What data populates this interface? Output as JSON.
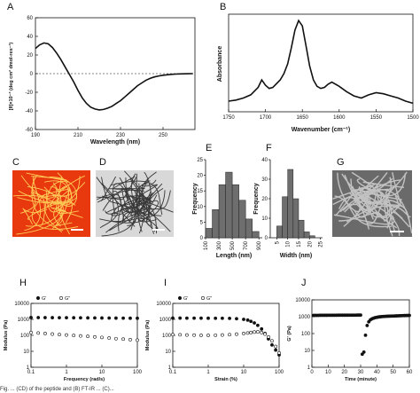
{
  "colors": {
    "curve": "#111111",
    "bar": "#6e6e6e",
    "micro_c_bg": "#e8380e",
    "micro_c_fiber": "#ffd35a"
  },
  "panels": {
    "A": {
      "letter": "A"
    },
    "B": {
      "letter": "B"
    },
    "C": {
      "letter": "C"
    },
    "D": {
      "letter": "D"
    },
    "E": {
      "letter": "E"
    },
    "F": {
      "letter": "F"
    },
    "G": {
      "letter": "G"
    },
    "H": {
      "letter": "H"
    },
    "I": {
      "letter": "I"
    },
    "J": {
      "letter": "J"
    }
  },
  "chart_data": [
    {
      "id": "A",
      "type": "line",
      "xlabel": "Wavelength (nm)",
      "ylabel": "[θ]×10⁻³ (deg cm² dmol-res⁻¹)",
      "xlim": [
        190,
        265
      ],
      "ylim": [
        -60,
        60
      ],
      "xticks": [
        190,
        210,
        230,
        250
      ],
      "yticks": [
        60,
        40,
        20,
        0,
        -20,
        -40,
        -60
      ],
      "zero_line": "dashed",
      "series": [
        {
          "x": [
            190,
            192,
            194,
            196,
            198,
            200,
            202,
            204,
            206,
            208,
            210,
            212,
            214,
            216,
            218,
            220,
            222,
            224,
            226,
            228,
            230,
            232,
            234,
            236,
            238,
            240,
            242,
            244,
            246,
            248,
            250,
            252,
            254,
            256,
            258,
            260,
            262,
            264
          ],
          "y": [
            27,
            31,
            33,
            32,
            28,
            22,
            15,
            7,
            -1,
            -9,
            -18,
            -26,
            -32,
            -36,
            -38,
            -39,
            -38.5,
            -37,
            -35,
            -32,
            -29,
            -25,
            -21,
            -17,
            -13,
            -10,
            -7,
            -5,
            -3.5,
            -2.5,
            -1.7,
            -1.2,
            -0.8,
            -0.5,
            -0.3,
            -0.2,
            -0.1,
            0
          ]
        }
      ]
    },
    {
      "id": "B",
      "type": "line",
      "xlabel": "Wavenumber (cm⁻¹)",
      "ylabel": "Absorbance",
      "xlim": [
        1750,
        1500
      ],
      "xticks": [
        1750,
        1700,
        1650,
        1600,
        1550,
        1500
      ],
      "series": [
        {
          "x": [
            1750,
            1740,
            1730,
            1720,
            1710,
            1705,
            1700,
            1695,
            1690,
            1680,
            1675,
            1670,
            1665,
            1660,
            1655,
            1650,
            1645,
            1640,
            1635,
            1630,
            1625,
            1620,
            1615,
            1610,
            1600,
            1590,
            1580,
            1570,
            1560,
            1550,
            1540,
            1530,
            1520,
            1510,
            1500
          ],
          "y": [
            0.3,
            0.31,
            0.33,
            0.36,
            0.43,
            0.5,
            0.45,
            0.42,
            0.43,
            0.5,
            0.56,
            0.65,
            0.8,
            0.97,
            1.06,
            1.01,
            0.82,
            0.63,
            0.5,
            0.44,
            0.42,
            0.43,
            0.46,
            0.48,
            0.44,
            0.39,
            0.35,
            0.33,
            0.36,
            0.38,
            0.37,
            0.35,
            0.33,
            0.3,
            0.28
          ]
        }
      ]
    },
    {
      "id": "E",
      "type": "bar",
      "xlabel": "Length (nm)",
      "ylabel": "Frequency",
      "xticks": [
        100,
        300,
        500,
        700,
        900
      ],
      "yticks": [
        0,
        5,
        10,
        15,
        20,
        25
      ],
      "ylim": [
        0,
        25
      ],
      "bin_width": 100,
      "bin_centers": [
        150,
        250,
        350,
        450,
        550,
        650,
        750,
        850
      ],
      "values": [
        3,
        9,
        17,
        21,
        17,
        12,
        6,
        2
      ]
    },
    {
      "id": "F",
      "type": "bar",
      "xlabel": "Width (nm)",
      "ylabel": "Frequency",
      "xticks": [
        5,
        10,
        15,
        20,
        25
      ],
      "yticks": [
        0,
        10,
        20,
        30,
        40
      ],
      "ylim": [
        0,
        40
      ],
      "bin_width": 2.5,
      "bin_centers": [
        6.25,
        8.75,
        11.25,
        13.75,
        16.25,
        18.75,
        21.25
      ],
      "values": [
        6,
        21,
        35,
        20,
        9,
        3,
        1
      ]
    },
    {
      "id": "H",
      "type": "scatter",
      "xlabel": "Frequency (rad/s)",
      "ylabel": "Modulus (Pa)",
      "yscale": "log",
      "xscale": "log",
      "xlim": [
        0.1,
        100
      ],
      "ylim": [
        1,
        10000
      ],
      "xticks": [
        "0.1",
        "1",
        "10",
        "100"
      ],
      "yticks": [
        "10000",
        "1000",
        "100",
        "10",
        "1"
      ],
      "legend": [
        "G'",
        "G\""
      ],
      "series": [
        {
          "name": "G'",
          "marker": "filled",
          "x": [
            0.1,
            0.16,
            0.25,
            0.4,
            0.63,
            1,
            1.6,
            2.5,
            4,
            6.3,
            10,
            16,
            25,
            40,
            63,
            100
          ],
          "y": [
            1300,
            1290,
            1285,
            1280,
            1270,
            1265,
            1260,
            1250,
            1240,
            1230,
            1220,
            1210,
            1200,
            1190,
            1180,
            1170
          ]
        },
        {
          "name": "G\"",
          "marker": "open",
          "x": [
            0.1,
            0.16,
            0.25,
            0.4,
            0.63,
            1,
            1.6,
            2.5,
            4,
            6.3,
            10,
            16,
            25,
            40,
            63,
            100
          ],
          "y": [
            150,
            140,
            130,
            120,
            112,
            105,
            98,
            92,
            86,
            80,
            74,
            68,
            62,
            58,
            54,
            50
          ]
        }
      ]
    },
    {
      "id": "I",
      "type": "scatter",
      "xlabel": "Strain (%)",
      "ylabel": "Modulus (Pa)",
      "yscale": "log",
      "xscale": "log",
      "xlim": [
        0.1,
        100
      ],
      "ylim": [
        1,
        10000
      ],
      "xticks": [
        "0.1",
        "1",
        "10",
        "100"
      ],
      "yticks": [
        "10000",
        "1000",
        "100",
        "10",
        "1"
      ],
      "legend": [
        "G'",
        "G\""
      ],
      "series": [
        {
          "name": "G'",
          "marker": "filled",
          "x": [
            0.1,
            0.16,
            0.25,
            0.4,
            0.63,
            1,
            1.6,
            2.5,
            4,
            6.3,
            10,
            13,
            16,
            20,
            25,
            32,
            40,
            50,
            63,
            80,
            100
          ],
          "y": [
            1200,
            1200,
            1195,
            1190,
            1185,
            1180,
            1175,
            1170,
            1150,
            1100,
            1000,
            900,
            750,
            600,
            420,
            250,
            130,
            60,
            25,
            12,
            6
          ]
        },
        {
          "name": "G\"",
          "marker": "open",
          "x": [
            0.1,
            0.16,
            0.25,
            0.4,
            0.63,
            1,
            1.6,
            2.5,
            4,
            6.3,
            10,
            13,
            16,
            20,
            25,
            32,
            40,
            50,
            63,
            80,
            100
          ],
          "y": [
            110,
            108,
            105,
            103,
            100,
            100,
            102,
            105,
            110,
            118,
            130,
            140,
            150,
            160,
            165,
            150,
            120,
            80,
            45,
            20,
            8
          ]
        }
      ]
    },
    {
      "id": "J",
      "type": "scatter",
      "xlabel": "Time (minute)",
      "ylabel": "G' (Pa)",
      "yscale": "log",
      "xlim": [
        0,
        60
      ],
      "ylim": [
        1,
        10000
      ],
      "xticks": [
        0,
        10,
        20,
        30,
        40,
        50,
        60
      ],
      "yticks": [
        "10000",
        "1000",
        "100",
        "10",
        "1"
      ],
      "series": [
        {
          "name": "G'",
          "marker": "filled",
          "x": [
            1,
            2,
            3,
            4,
            5,
            6,
            7,
            8,
            9,
            10,
            11,
            12,
            13,
            14,
            15,
            16,
            17,
            18,
            19,
            20,
            21,
            22,
            23,
            24,
            25,
            26,
            27,
            28,
            29,
            30,
            31,
            32,
            33,
            34,
            35,
            36,
            37,
            38,
            39,
            40,
            41,
            42,
            43,
            44,
            45,
            46,
            47,
            48,
            49,
            50,
            51,
            52,
            53,
            54,
            55,
            56,
            57,
            58,
            59,
            60
          ],
          "y": [
            1200,
            1200,
            1200,
            1200,
            1210,
            1210,
            1210,
            1210,
            1210,
            1220,
            1220,
            1220,
            1220,
            1220,
            1220,
            1230,
            1230,
            1230,
            1230,
            1230,
            1230,
            1230,
            1240,
            1240,
            1240,
            1240,
            1240,
            1250,
            1250,
            1250,
            6,
            8,
            80,
            300,
            500,
            650,
            750,
            820,
            880,
            920,
            960,
            990,
            1010,
            1030,
            1050,
            1060,
            1070,
            1080,
            1090,
            1100,
            1110,
            1120,
            1130,
            1140,
            1150,
            1160,
            1170,
            1180,
            1190,
            1200
          ]
        }
      ]
    }
  ],
  "micrographs": {
    "C": "fiber network",
    "D": "fiber network",
    "G": "fiber network"
  },
  "caption_text": "Fig. ... (CD) of the peptide and (B) FT-IR ... (C)..."
}
